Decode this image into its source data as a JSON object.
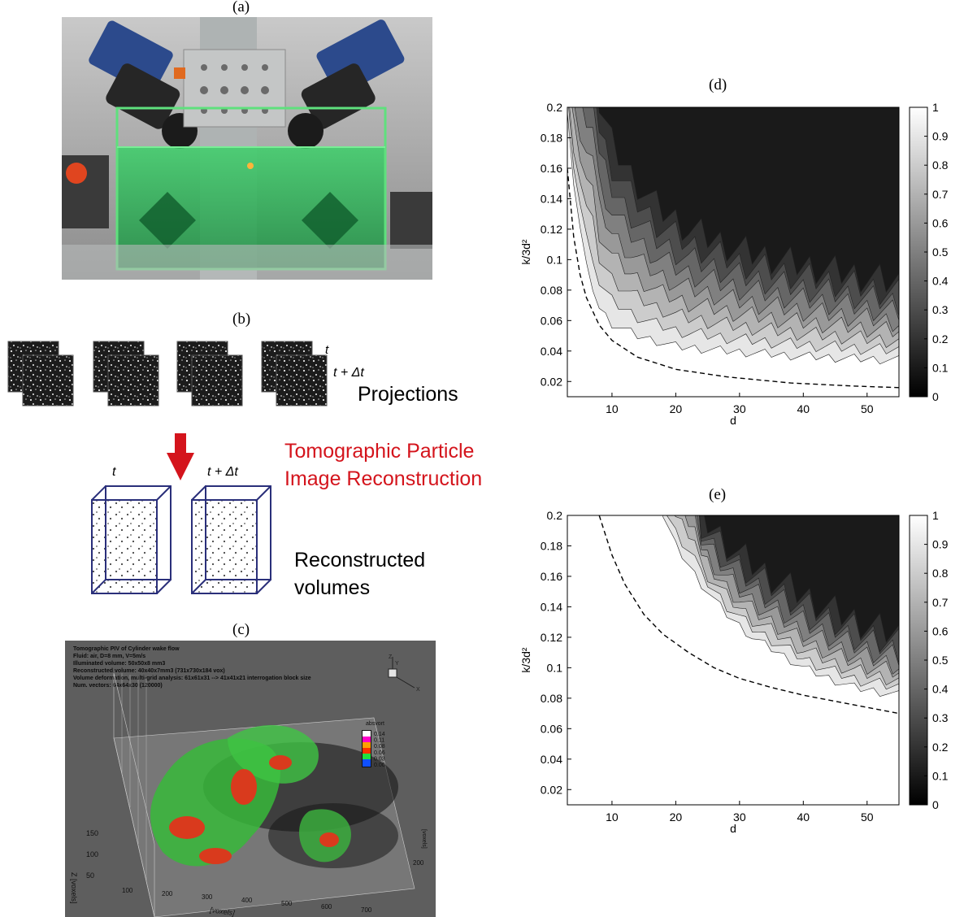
{
  "panels": {
    "a": {
      "label": "(a)"
    },
    "b": {
      "label": "(b)",
      "t_label": "t",
      "t_dt_label": "t + Δt",
      "projections_label": "Projections",
      "method_line1": "Tomographic Particle",
      "method_line2": "Image Reconstruction",
      "vol_t_label": "t",
      "vol_t_dt_label": "t + Δt",
      "volumes_line1": "Reconstructed",
      "volumes_line2": "volumes",
      "method_color": "#d4141c"
    },
    "c": {
      "label": "(c)",
      "info_lines": [
        "Tomographic PIV of Cylinder wake flow",
        "Fluid: air, D=8 mm, V=5m/s",
        "Illuminated volume: 50x50x8 mm3",
        "Reconstructed volume: 40x40x7mm3 (731x730x184 vox)",
        "Volume deformation, multi-grid analysis: 61x61x31 --> 41x41x21 interrogation block size",
        "Num. vectors: 64x64x30 (120000)"
      ],
      "legend_title": "absvort",
      "legend_values": [
        "0.14",
        "0.11",
        "0.08",
        "0.06",
        "0.03",
        "0.00"
      ],
      "z_axis_label": "Z [voxels]",
      "z_ticks": [
        "150",
        "100",
        "50"
      ],
      "x_axis_label": "[voxels]",
      "x_ticks": [
        "100",
        "200",
        "300",
        "400",
        "500",
        "600",
        "700"
      ],
      "y_axis_label": "[voxels]",
      "y_ticks": [
        "200"
      ],
      "triad": {
        "z": "Z",
        "y": "Y",
        "x": "X"
      }
    },
    "d": {
      "label": "(d)"
    },
    "e": {
      "label": "(e)"
    }
  },
  "chart_data": [
    {
      "type": "heatmap",
      "panel": "d",
      "title": "",
      "xlabel": "d",
      "ylabel": "k/3d²",
      "xlim": [
        3,
        55
      ],
      "ylim": [
        0.01,
        0.2
      ],
      "xticks": [
        10,
        20,
        30,
        40,
        50
      ],
      "yticks": [
        0.02,
        0.04,
        0.06,
        0.08,
        0.1,
        0.12,
        0.14,
        0.16,
        0.18,
        0.2
      ],
      "colorbar": {
        "min": 0,
        "max": 1,
        "ticks": [
          0,
          0.1,
          0.2,
          0.3,
          0.4,
          0.5,
          0.6,
          0.7,
          0.8,
          0.9,
          1
        ],
        "colormap": "gray"
      },
      "contour_levels": [
        0.1,
        0.2,
        0.3,
        0.4,
        0.5,
        0.6,
        0.7,
        0.8,
        0.9
      ],
      "boundary_0_9_level": {
        "x": [
          3,
          4,
          5,
          6,
          8,
          10,
          14,
          20,
          28,
          38,
          48,
          55
        ],
        "y": [
          0.2,
          0.15,
          0.12,
          0.095,
          0.068,
          0.058,
          0.05,
          0.043,
          0.04,
          0.037,
          0.035,
          0.034
        ]
      },
      "boundary_0_1_level": {
        "x": [
          8,
          10,
          13,
          17,
          22,
          30,
          40,
          48,
          55
        ],
        "y": [
          0.2,
          0.176,
          0.155,
          0.135,
          0.12,
          0.106,
          0.096,
          0.09,
          0.084
        ]
      },
      "dashed_curve": {
        "x": [
          3,
          4,
          5,
          6,
          8,
          10,
          14,
          20,
          28,
          38,
          48,
          55
        ],
        "y": [
          0.16,
          0.115,
          0.09,
          0.075,
          0.057,
          0.047,
          0.036,
          0.028,
          0.023,
          0.019,
          0.017,
          0.016
        ]
      }
    },
    {
      "type": "heatmap",
      "panel": "e",
      "title": "",
      "xlabel": "d",
      "ylabel": "k/3d²",
      "xlim": [
        3,
        55
      ],
      "ylim": [
        0.01,
        0.2
      ],
      "xticks": [
        10,
        20,
        30,
        40,
        50
      ],
      "yticks": [
        0.02,
        0.04,
        0.06,
        0.08,
        0.1,
        0.12,
        0.14,
        0.16,
        0.18,
        0.2
      ],
      "colorbar": {
        "min": 0,
        "max": 1,
        "ticks": [
          0,
          0.1,
          0.2,
          0.3,
          0.4,
          0.5,
          0.6,
          0.7,
          0.8,
          0.9,
          1
        ],
        "colormap": "gray"
      },
      "contour_levels": [
        0.1,
        0.2,
        0.3,
        0.4,
        0.5,
        0.6,
        0.7,
        0.8,
        0.9
      ],
      "boundary_0_9_level": {
        "x": [
          18,
          20,
          24,
          28,
          32,
          36,
          40,
          44,
          48,
          55
        ],
        "y": [
          0.2,
          0.18,
          0.155,
          0.135,
          0.12,
          0.11,
          0.1,
          0.093,
          0.087,
          0.082
        ]
      },
      "boundary_0_1_level": {
        "x": [
          24,
          27,
          30,
          34,
          38,
          42,
          46,
          50,
          55
        ],
        "y": [
          0.2,
          0.186,
          0.174,
          0.162,
          0.152,
          0.143,
          0.135,
          0.128,
          0.121
        ]
      },
      "dashed_curve": {
        "x": [
          8,
          10,
          12,
          15,
          18,
          22,
          26,
          30,
          35,
          40,
          45,
          50,
          55
        ],
        "y": [
          0.2,
          0.174,
          0.155,
          0.135,
          0.122,
          0.11,
          0.1,
          0.093,
          0.087,
          0.082,
          0.078,
          0.074,
          0.07
        ]
      }
    }
  ]
}
